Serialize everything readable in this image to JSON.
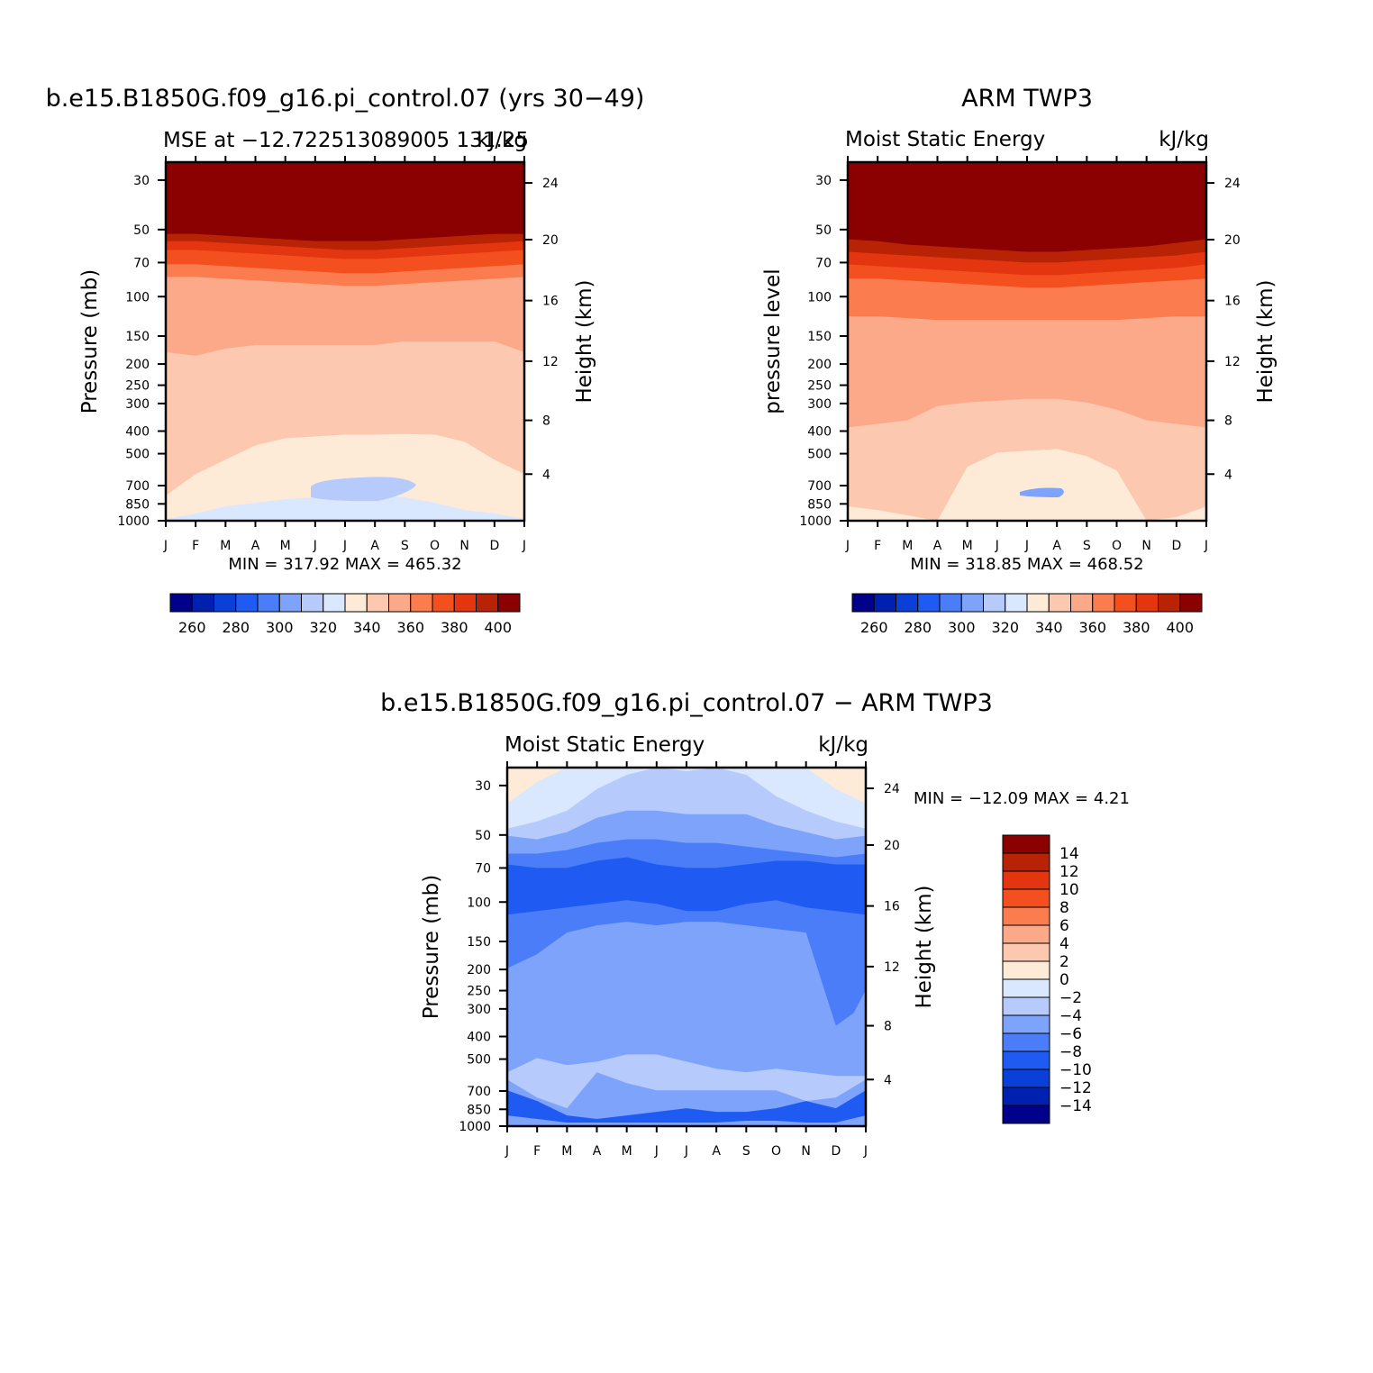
{
  "chart_data": [
    {
      "type": "heatmap",
      "title": "b.e15.B1850G.f09_g16.pi_control.07 (yrs 30−49)",
      "subtitle_left": "MSE at −12.722513089005 131.25",
      "subtitle_right": "kJ/kg",
      "ylabel": "Pressure (mb)",
      "ylabel_right": "Height (km)",
      "stats": "MIN = 317.92 MAX = 465.32",
      "x_ticks": [
        "J",
        "F",
        "M",
        "A",
        "M",
        "J",
        "J",
        "A",
        "S",
        "O",
        "N",
        "D",
        "J"
      ],
      "y_ticks": [
        "30",
        "50",
        "70",
        "100",
        "150",
        "200",
        "250",
        "300",
        "400",
        "500",
        "700",
        "850",
        "1000"
      ],
      "y_ticks_right": [
        "24",
        "20",
        "16",
        "12",
        "8",
        "4"
      ],
      "y_scale": "log-pressure",
      "colorbar_labels": [
        "260",
        "280",
        "300",
        "320",
        "340",
        "360",
        "380",
        "400"
      ],
      "colorbar_orientation": "horizontal"
    },
    {
      "type": "heatmap",
      "title": "ARM TWP3",
      "subtitle_left": "Moist Static Energy",
      "subtitle_right": "kJ/kg",
      "ylabel": "pressure level",
      "ylabel_right": "Height (km)",
      "stats": "MIN = 318.85 MAX = 468.52",
      "x_ticks": [
        "J",
        "F",
        "M",
        "A",
        "M",
        "J",
        "J",
        "A",
        "S",
        "O",
        "N",
        "D",
        "J"
      ],
      "y_ticks": [
        "30",
        "50",
        "70",
        "100",
        "150",
        "200",
        "250",
        "300",
        "400",
        "500",
        "700",
        "850",
        "1000"
      ],
      "y_ticks_right": [
        "24",
        "20",
        "16",
        "12",
        "8",
        "4"
      ],
      "y_scale": "log-pressure",
      "colorbar_labels": [
        "260",
        "280",
        "300",
        "320",
        "340",
        "360",
        "380",
        "400"
      ],
      "colorbar_orientation": "horizontal"
    },
    {
      "type": "heatmap",
      "title": "b.e15.B1850G.f09_g16.pi_control.07 − ARM TWP3",
      "subtitle_left": "Moist Static Energy",
      "subtitle_right": "kJ/kg",
      "ylabel": "Pressure (mb)",
      "ylabel_right": "Height (km)",
      "stats": "MIN = −12.09 MAX =    4.21",
      "x_ticks": [
        "J",
        "F",
        "M",
        "A",
        "M",
        "J",
        "J",
        "A",
        "S",
        "O",
        "N",
        "D",
        "J"
      ],
      "y_ticks": [
        "30",
        "50",
        "70",
        "100",
        "150",
        "200",
        "250",
        "300",
        "400",
        "500",
        "700",
        "850",
        "1000"
      ],
      "y_ticks_right": [
        "24",
        "20",
        "16",
        "12",
        "8",
        "4"
      ],
      "y_scale": "log-pressure",
      "colorbar_labels": [
        "14",
        "12",
        "10",
        "8",
        "6",
        "4",
        "2",
        "0",
        "−2",
        "−4",
        "−6",
        "−8",
        "−10",
        "−12",
        "−14"
      ],
      "colorbar_orientation": "vertical"
    }
  ],
  "palette": [
    "#00008b",
    "#0020b0",
    "#0a3fd8",
    "#1f5bf2",
    "#4a7df7",
    "#7ea3fa",
    "#b6cbfc",
    "#d9e7ff",
    "#fdebd8",
    "#fdc8b0",
    "#fca98a",
    "#fb7c4f",
    "#f4501f",
    "#e23510",
    "#b82205",
    "#8b0000"
  ]
}
